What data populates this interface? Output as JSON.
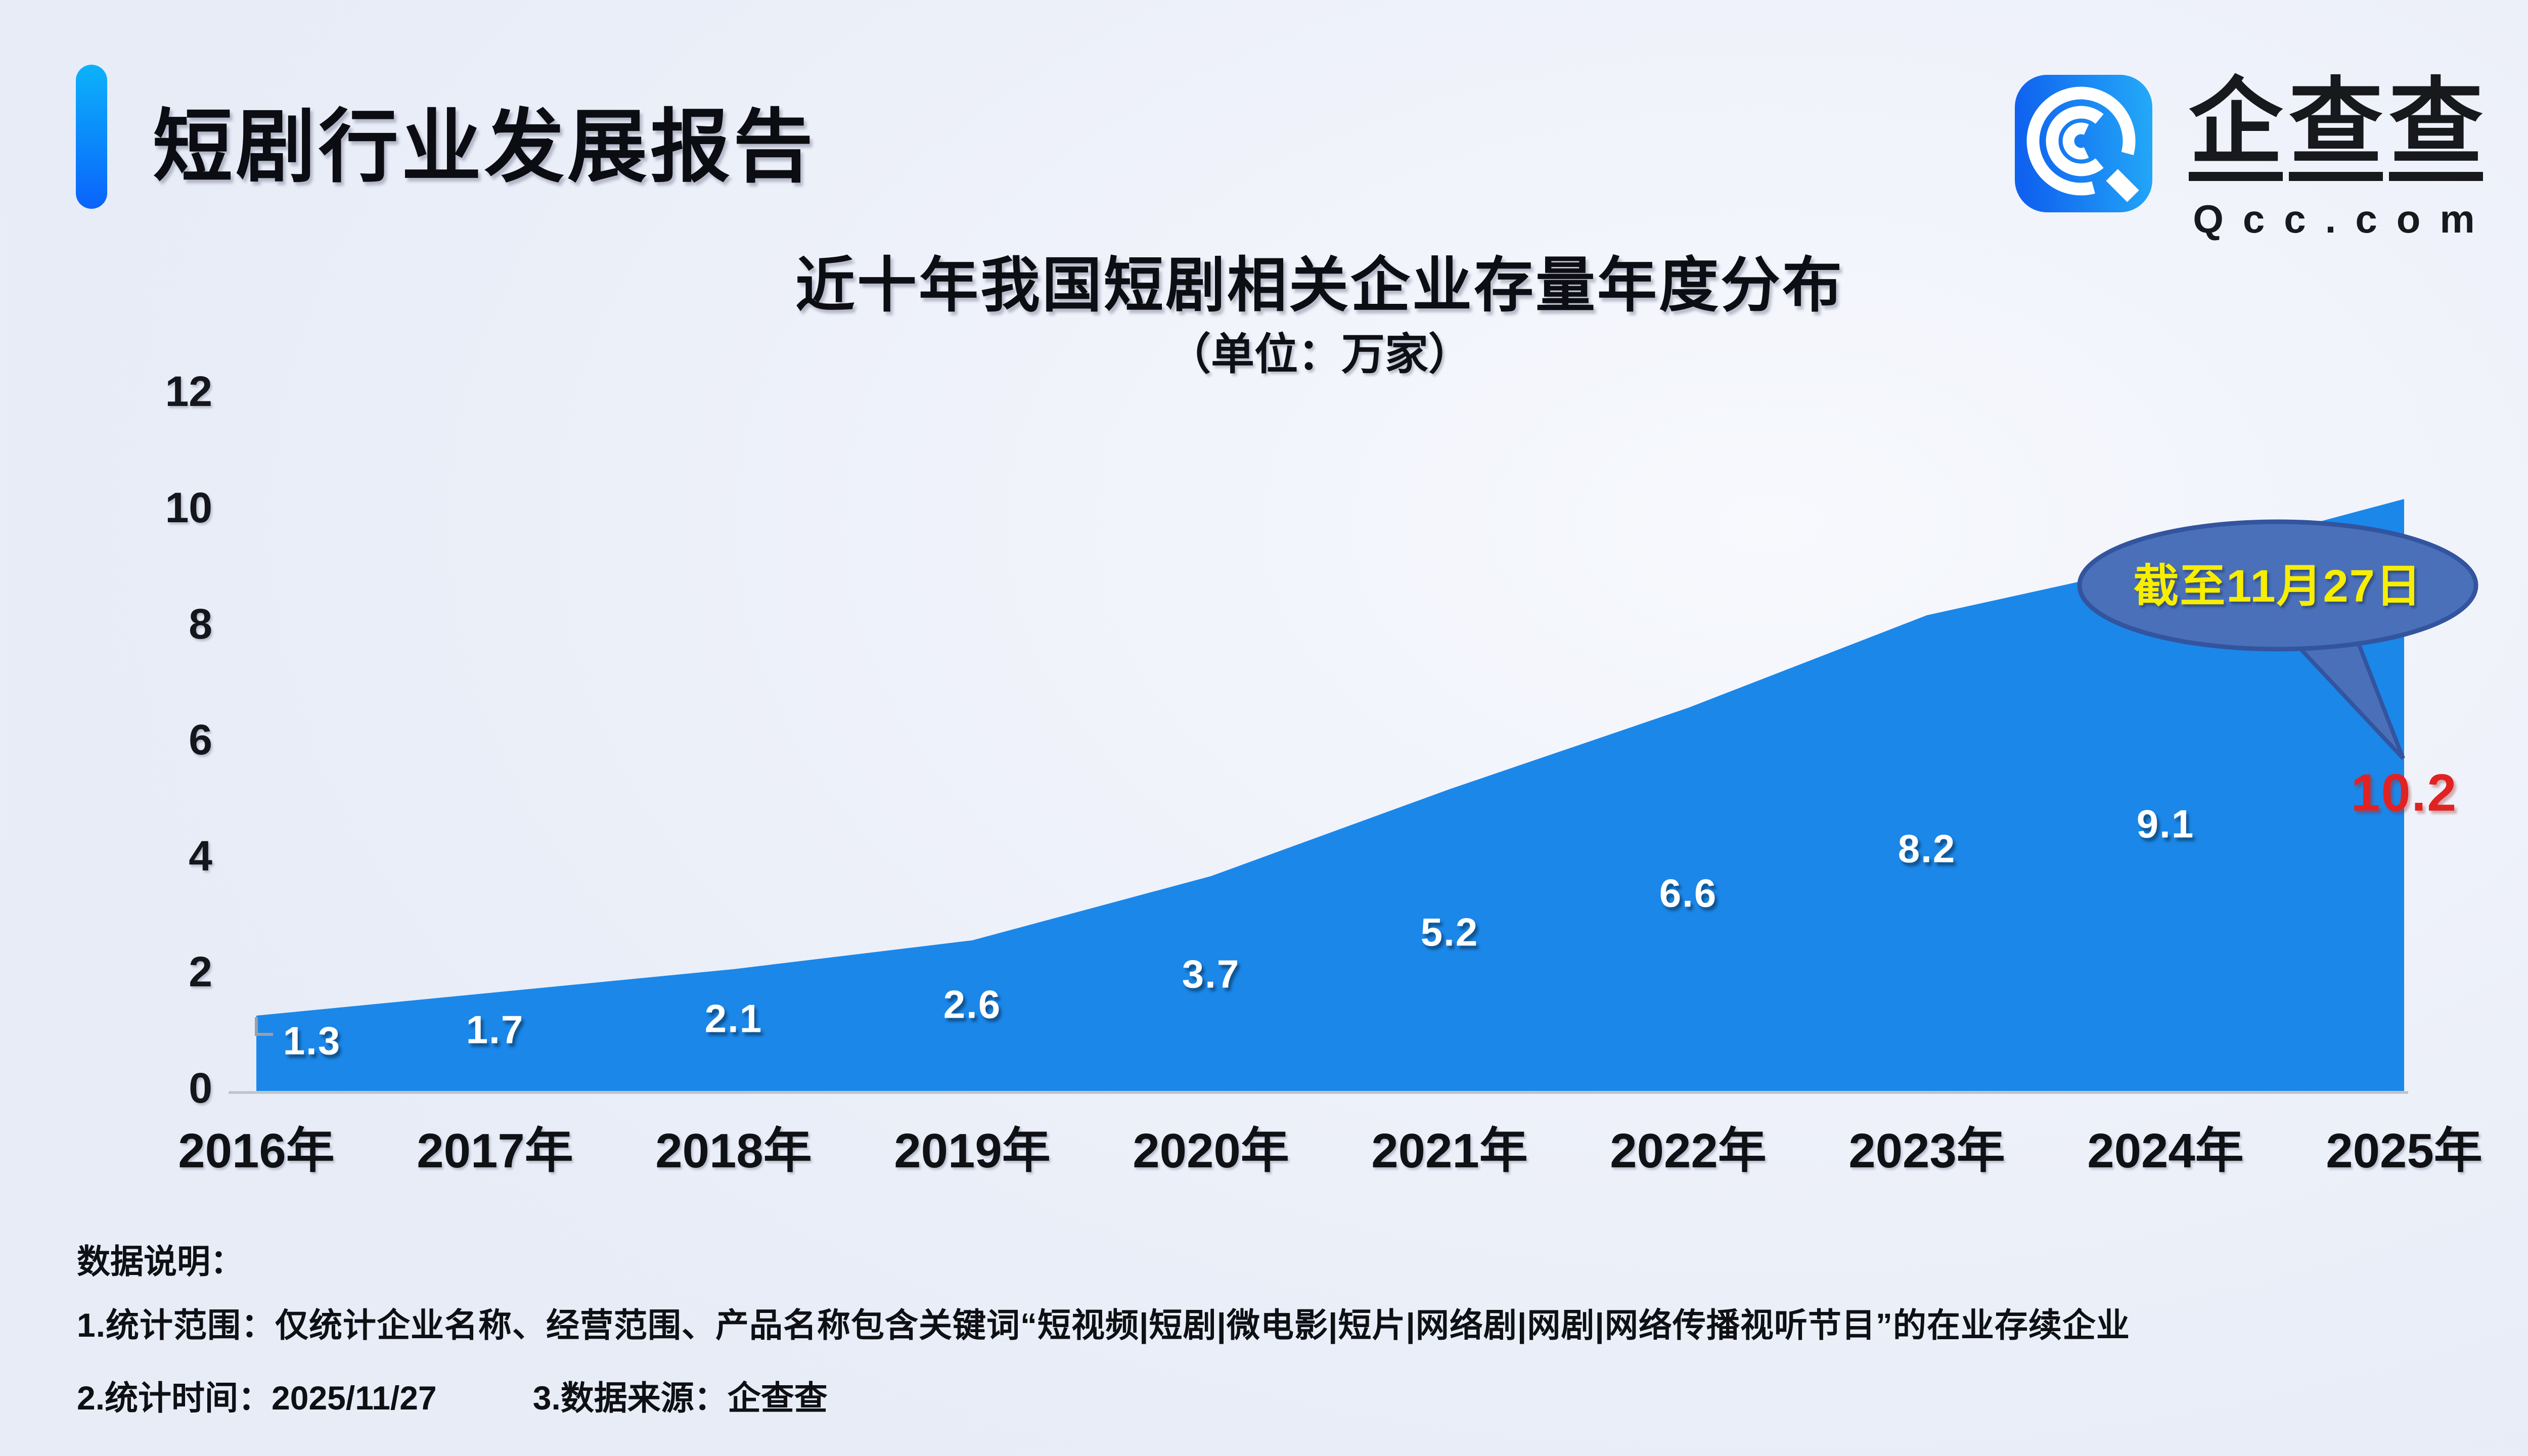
{
  "header": {
    "title": "短剧行业发展报告"
  },
  "logo": {
    "chars": [
      "企",
      "查",
      "查"
    ],
    "domain": "Qcc.com",
    "icon": "qcc-logo-icon"
  },
  "chart_data": {
    "type": "area",
    "title": "近十年我国短剧相关企业存量年度分布",
    "subtitle": "（单位：万家）",
    "unit": "万家",
    "categories": [
      "2016年",
      "2017年",
      "2018年",
      "2019年",
      "2020年",
      "2021年",
      "2022年",
      "2023年",
      "2024年",
      "2025年"
    ],
    "values": [
      1.3,
      1.7,
      2.1,
      2.6,
      3.7,
      5.2,
      6.6,
      8.2,
      9.1,
      10.2
    ],
    "yticks": [
      0,
      2,
      4,
      6,
      8,
      10,
      12
    ],
    "ylim": [
      0,
      12
    ],
    "grid": false,
    "legend": "none",
    "area_color": "#1b87e9",
    "label_color": "#ffffff",
    "last_label_color": "#e12222",
    "axis_line_color": "#bcc1cb",
    "annotation": {
      "text": "截至11月27日",
      "target": "2025年",
      "bubble_fill": "#4a70ba",
      "bubble_border": "#33549e",
      "text_color": "#f7ee00"
    }
  },
  "footer": {
    "heading": "数据说明：",
    "note1": "1.统计范围：仅统计企业名称、经营范围、产品名称包含关键词“短视频|短剧|微电影|短片|网络剧|网剧|网络传播视听节目”的在业存续企业",
    "note2": "2.统计时间：2025/11/27",
    "note3": "3.数据来源：企查查"
  }
}
